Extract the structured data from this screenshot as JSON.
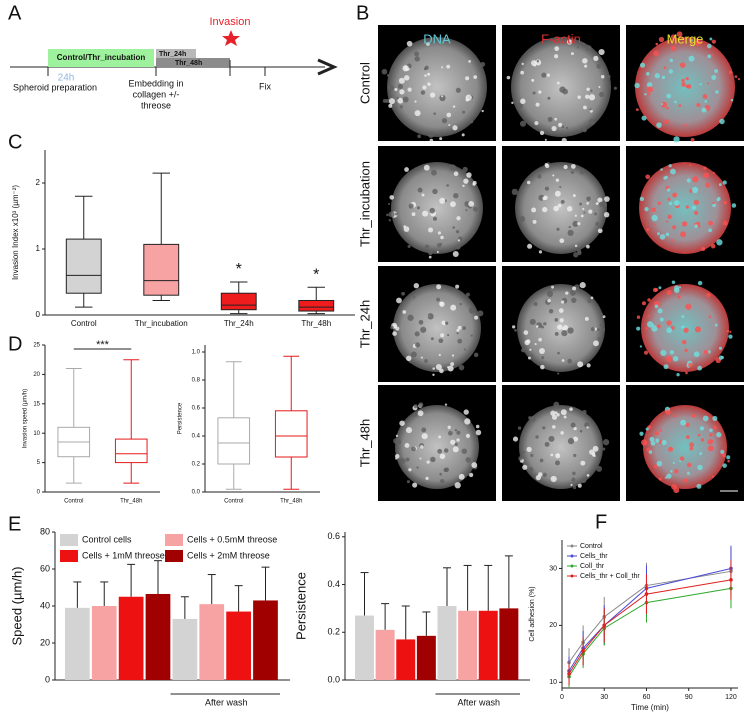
{
  "panels": {
    "a": "A",
    "b": "B",
    "c": "C",
    "d": "D",
    "e": "E",
    "f": "F"
  },
  "timeline": {
    "incubation": "Control/Thr_incubation",
    "thr24": "Thr_24h",
    "thr48": "Thr_48h",
    "invasion": "Invasion",
    "duration": "24h",
    "spheroid": "Spheroid preparation",
    "embedding": [
      "Embedding in",
      "collagen +/-",
      "threose"
    ],
    "fix": "Fix"
  },
  "imaging": {
    "columns": [
      "DNA",
      "F-actin",
      "Merge"
    ],
    "rows": [
      "Control",
      "Thr_incubation",
      "Thr_24h",
      "Thr_48h"
    ]
  },
  "chart_data": [
    {
      "type": "box",
      "y_label": "Invasion Index x10³ (µm⁻²)",
      "categories": [
        "Control",
        "Thr_incubation",
        "Thr_24h",
        "Thr_48h"
      ],
      "min": [
        0.12,
        0.22,
        0.02,
        0.02
      ],
      "q1": [
        0.33,
        0.3,
        0.08,
        0.06
      ],
      "median": [
        0.6,
        0.52,
        0.15,
        0.12
      ],
      "q3": [
        1.15,
        1.07,
        0.33,
        0.22
      ],
      "max": [
        1.8,
        2.15,
        0.5,
        0.42
      ],
      "colors": [
        "#d3d3d3",
        "#f7a3a3",
        "#ee1c1c",
        "#ee1c1c"
      ],
      "ylim": [
        0,
        2.5
      ],
      "yticks": [
        0,
        1,
        2
      ],
      "annotations": [
        "*",
        "*"
      ]
    },
    {
      "type": "box",
      "y_label": "Invasion speed (µm/h)",
      "categories": [
        "Control",
        "Thr_48h"
      ],
      "min": [
        1.5,
        1.5
      ],
      "q1": [
        6,
        5
      ],
      "median": [
        8.5,
        6.5
      ],
      "q3": [
        11,
        9
      ],
      "max": [
        21,
        22.5
      ],
      "colors": [
        "#ffffff",
        "#ffffff"
      ],
      "edge_colors": [
        "#aaaaaa",
        "#e51a1a"
      ],
      "ylim": [
        0,
        25
      ],
      "yticks": [
        0,
        5,
        10,
        15,
        20,
        25
      ],
      "annotations": [
        "***"
      ]
    },
    {
      "type": "box",
      "y_label": "Persistence",
      "categories": [
        "Control",
        "Thr_48h"
      ],
      "min": [
        0.02,
        0.02
      ],
      "q1": [
        0.2,
        0.25
      ],
      "median": [
        0.35,
        0.4
      ],
      "q3": [
        0.53,
        0.58
      ],
      "max": [
        0.93,
        0.97
      ],
      "colors": [
        "#ffffff",
        "#ffffff"
      ],
      "edge_colors": [
        "#aaaaaa",
        "#e51a1a"
      ],
      "ylim": [
        0,
        1.05
      ],
      "yticks": [
        {
          "value": 0,
          "label": "0.0"
        },
        0.2,
        0.4,
        0.6,
        0.8,
        {
          "value": 1,
          "label": "1.0"
        }
      ]
    },
    {
      "type": "bar",
      "y_label": "Speed  (µm/h)",
      "categories": [
        null,
        "After wash"
      ],
      "series": [
        {
          "name": "Control cells",
          "color": "#d3d3d3",
          "values": [
            39,
            33
          ],
          "errors": [
            14,
            12
          ]
        },
        {
          "name": "Cells + 0.5mM threose",
          "color": "#f7a3a3",
          "values": [
            40,
            41
          ],
          "errors": [
            13,
            16
          ]
        },
        {
          "name": "Cells + 1mM threose",
          "color": "#ee1111",
          "values": [
            45,
            37
          ],
          "errors": [
            17.5,
            14
          ]
        },
        {
          "name": "Cells + 2mM threose",
          "color": "#a00000",
          "values": [
            46.5,
            43
          ],
          "errors": [
            18,
            18
          ]
        }
      ],
      "ylim": [
        0,
        80
      ],
      "yticks": [
        0,
        20,
        40,
        60,
        80
      ]
    },
    {
      "type": "bar",
      "y_label": "Persistence",
      "categories": [
        null,
        "After wash"
      ],
      "series": [
        {
          "color": "#d3d3d3",
          "values": [
            0.27,
            0.31
          ],
          "errors": [
            0.18,
            0.16
          ]
        },
        {
          "color": "#f7a3a3",
          "values": [
            0.21,
            0.29
          ],
          "errors": [
            0.11,
            0.19
          ]
        },
        {
          "color": "#ee1111",
          "values": [
            0.17,
            0.29
          ],
          "errors": [
            0.14,
            0.19
          ]
        },
        {
          "color": "#a00000",
          "values": [
            0.185,
            0.3
          ],
          "errors": [
            0.1,
            0.22
          ]
        }
      ],
      "ylim": [
        0,
        0.62
      ],
      "yticks": [
        {
          "value": 0,
          "label": "0.0"
        },
        0.2,
        0.4,
        0.6
      ]
    },
    {
      "type": "line",
      "x_label": "Time (min)",
      "y_label": "Cell adhesion (%)",
      "x": [
        5,
        15,
        30,
        60,
        120
      ],
      "series": [
        {
          "name": "Control",
          "color": "#888888",
          "values": [
            13.5,
            17,
            21.5,
            27,
            29.5
          ],
          "errors": [
            2.5,
            3,
            3.5,
            4,
            4
          ]
        },
        {
          "name": "Cells_thr",
          "color": "#4a4ad8",
          "values": [
            12,
            16,
            20,
            26.5,
            30
          ],
          "errors": [
            2.5,
            3,
            3.5,
            4,
            4
          ]
        },
        {
          "name": "Coll_thr",
          "color": "#2ea82e",
          "values": [
            11,
            15,
            19.5,
            24,
            26.5
          ],
          "errors": [
            2,
            2.5,
            3,
            3.5,
            3.5
          ]
        },
        {
          "name": "Cells_thr + Coll_thr",
          "color": "#e02020",
          "values": [
            11.5,
            15.5,
            20,
            25.5,
            28
          ],
          "errors": [
            2,
            2.5,
            3,
            3.5,
            3.5
          ]
        }
      ],
      "xlim": [
        0,
        125
      ],
      "xticks": [
        0,
        30,
        60,
        90,
        120
      ],
      "ylim": [
        9,
        35
      ],
      "yticks": [
        10,
        20,
        30
      ]
    }
  ]
}
